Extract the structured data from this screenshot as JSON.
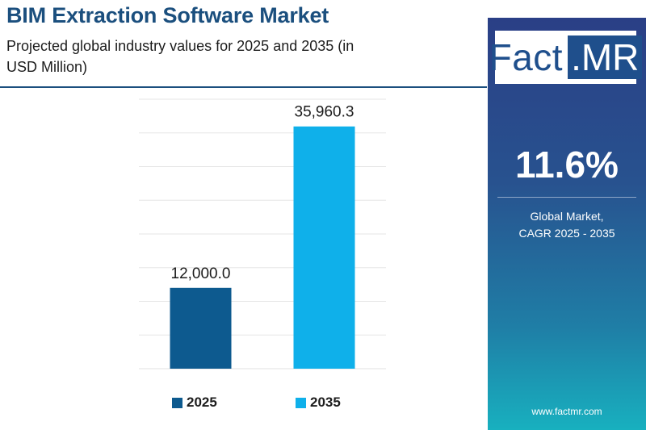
{
  "header": {
    "title": "BIM Extraction Software Market",
    "subtitle": "Projected global industry values for 2025 and 2035 (in USD Million)"
  },
  "chart_data": {
    "type": "bar",
    "title": "BIM Extraction Software Market",
    "subtitle": "Projected global industry values for 2025 and 2035 (in USD Million)",
    "categories": [
      "2025",
      "2035"
    ],
    "values": [
      12000.0,
      35960.3
    ],
    "value_labels": [
      "12,000.0",
      "35,960.3"
    ],
    "colors": [
      "#0d5a8f",
      "#0fb0ea"
    ],
    "ylim": [
      0,
      40000
    ],
    "grid": true,
    "legend": "bottom",
    "xlabel": "",
    "ylabel": ""
  },
  "legend": {
    "items": [
      {
        "label": "2025",
        "color": "#0d5a8f"
      },
      {
        "label": "2035",
        "color": "#0fb0ea"
      }
    ]
  },
  "side_panel": {
    "logo_main": "Fact",
    "logo_suffix": ".MR",
    "cagr_value": "11.6%",
    "cagr_caption_line1": "Global Market,",
    "cagr_caption_line2": "CAGR 2025 - 2035",
    "website": "www.factmr.com"
  }
}
